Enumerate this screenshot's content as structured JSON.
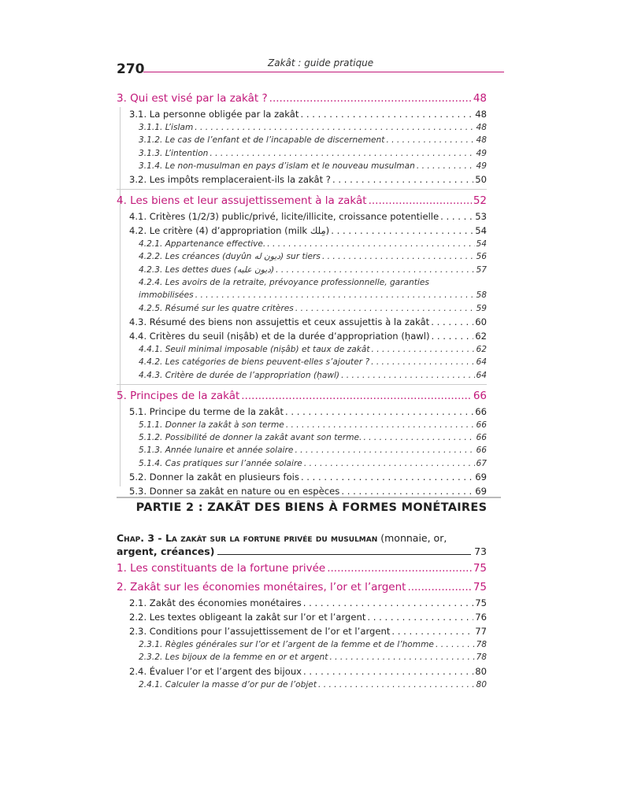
{
  "header": {
    "page_number": "270",
    "running_title": "Zakât : guide pratique"
  },
  "toc_part1": [
    {
      "level": 1,
      "title": "3. Qui est visé par la zakât ?",
      "page": "48"
    },
    {
      "level": 2,
      "title": "3.1. La personne obligée par la zakât",
      "page": "48"
    },
    {
      "level": 3,
      "title": "3.1.1. L’islam",
      "page": "48"
    },
    {
      "level": 3,
      "title": "3.1.2. Le cas de l’enfant et de l’incapable de discernement",
      "page": "48"
    },
    {
      "level": 3,
      "title": "3.1.3. L’intention",
      "page": "49"
    },
    {
      "level": 3,
      "title": "3.1.4. Le non-musulman en pays d’islam et le nouveau musulman",
      "page": "49"
    },
    {
      "level": 2,
      "title": "3.2. Les impôts remplaceraient-ils la zakât ?",
      "page": "50"
    },
    {
      "level": 1,
      "title": "4. Les biens et leur assujettissement à la zakât",
      "page": "52",
      "sep": true
    },
    {
      "level": 2,
      "title": "4.1. Critères (1/2/3) public/privé, licite/illicite, croissance potentielle",
      "page": "53"
    },
    {
      "level": 2,
      "title": "4.2. Le critère (4) d’appropriation (milk مِلك)",
      "page": "54"
    },
    {
      "level": 3,
      "title": "4.2.1. Appartenance effective.",
      "page": "54"
    },
    {
      "level": 3,
      "title": "4.2.2. Les créances (duyûn ديون له) sur tiers",
      "page": "56"
    },
    {
      "level": 3,
      "title": "4.2.3. Les dettes dues (ديون عليه)",
      "page": "57"
    },
    {
      "level": 3,
      "title": "4.2.4. Les avoirs de la retraite, prévoyance professionnelle, garanties",
      "title2": "immobilisées",
      "page": "58"
    },
    {
      "level": 3,
      "title": "4.2.5. Résumé sur les quatre critères",
      "page": "59"
    },
    {
      "level": 2,
      "title": "4.3. Résumé des biens non assujettis et ceux assujettis à la zakât",
      "page": "60"
    },
    {
      "level": 2,
      "title": "4.4. Critères du seuil (niṣâb) et de la durée d’appropriation (ḥawl)",
      "page": "62"
    },
    {
      "level": 3,
      "title": "4.4.1. Seuil minimal imposable (niṣâb) et taux de zakât",
      "page": "62"
    },
    {
      "level": 3,
      "title": "4.4.2. Les catégories de biens peuvent-elles s’ajouter ?",
      "page": "64"
    },
    {
      "level": 3,
      "title": "4.4.3. Critère de durée de l’appropriation (ḥawl)",
      "page": "64"
    },
    {
      "level": 1,
      "title": "5. Principes de la zakât",
      "page": "66",
      "sep": true
    },
    {
      "level": 2,
      "title": "5.1. Principe du terme de la zakât",
      "page": "66"
    },
    {
      "level": 3,
      "title": "5.1.1. Donner la zakât à son terme",
      "page": "66"
    },
    {
      "level": 3,
      "title": "5.1.2. Possibilité de donner la zakât avant son terme.",
      "page": "66"
    },
    {
      "level": 3,
      "title": "5.1.3. Année lunaire et année solaire",
      "page": "66"
    },
    {
      "level": 3,
      "title": "5.1.4. Cas pratiques sur l’année solaire",
      "page": "67"
    },
    {
      "level": 2,
      "title": "5.2. Donner la zakât en plusieurs fois",
      "page": "69"
    },
    {
      "level": 2,
      "title": "5.3. Donner sa zakât en nature ou en espèces",
      "page": "69"
    }
  ],
  "part2": {
    "title": "PARTIE 2 : ZAKÂT DES BIENS À FORMES MONÉTAIRES"
  },
  "chapter": {
    "label": "Chap. 3 - La zakât sur la fortune privée du musulman",
    "paren1": " (monnaie, or,",
    "paren2": "argent, créances)",
    "page": "73"
  },
  "toc_part2": [
    {
      "level": 1,
      "title": "1. Les constituants de la fortune privée",
      "page": "75"
    },
    {
      "level": 1,
      "title": "2. Zakât sur les économies monétaires, l’or et l’argent",
      "page": "75"
    },
    {
      "level": 2,
      "title": "2.1. Zakât des économies monétaires",
      "page": "75"
    },
    {
      "level": 2,
      "title": "2.2. Les textes obligeant la zakât sur l’or et l’argent",
      "page": "76"
    },
    {
      "level": 2,
      "title": "2.3. Conditions pour l’assujettissement de l’or et l’argent",
      "page": "77"
    },
    {
      "level": 3,
      "title": "2.3.1. Règles générales sur l’or et l’argent de la femme et de l’homme",
      "page": "78"
    },
    {
      "level": 3,
      "title": "2.3.2. Les bijoux de la femme en or et argent",
      "page": "78"
    },
    {
      "level": 2,
      "title": "2.4. Évaluer l’or et l’argent des bijoux",
      "page": "80"
    },
    {
      "level": 3,
      "title": "2.4.1. Calculer la masse d’or pur de l’objet",
      "page": "80"
    }
  ],
  "colors": {
    "accent": "#c2187a",
    "text": "#222222"
  }
}
